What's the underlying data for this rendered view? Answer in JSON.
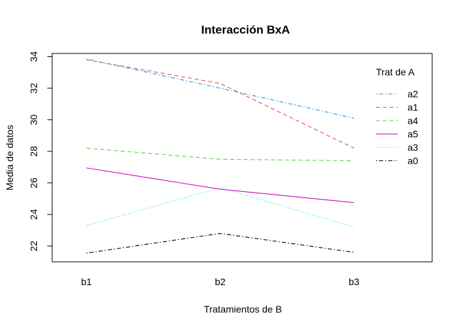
{
  "chart_data": {
    "type": "line",
    "title": "Interacción BxA",
    "xlabel": "Tratamientos de B",
    "ylabel": "Media de datos",
    "categories": [
      "b1",
      "b2",
      "b3"
    ],
    "yticks": [
      "22",
      "24",
      "26",
      "28",
      "30",
      "32",
      "34"
    ],
    "ylim": [
      21.0,
      34.2
    ],
    "legend": {
      "title": "Trat de A",
      "placement": "top-right"
    },
    "series": [
      {
        "name": "a2",
        "values": [
          33.85,
          32.0,
          30.1
        ],
        "color": "#2297E6",
        "dash": "dotdash"
      },
      {
        "name": "a1",
        "values": [
          33.8,
          32.3,
          28.2
        ],
        "color": "#DF536B",
        "dash": "dashed"
      },
      {
        "name": "a4",
        "values": [
          28.2,
          27.5,
          27.4
        ],
        "color": "#61D04F",
        "dash": "dashed"
      },
      {
        "name": "a5",
        "values": [
          26.95,
          25.6,
          24.75
        ],
        "color": "#CD0BBC",
        "dash": "solid"
      },
      {
        "name": "a3",
        "values": [
          23.3,
          25.7,
          23.2
        ],
        "color": "#28E2E5",
        "dash": "dotted"
      },
      {
        "name": "a0",
        "values": [
          21.55,
          22.8,
          21.6
        ],
        "color": "#000000",
        "dash": "dotdash"
      }
    ]
  }
}
